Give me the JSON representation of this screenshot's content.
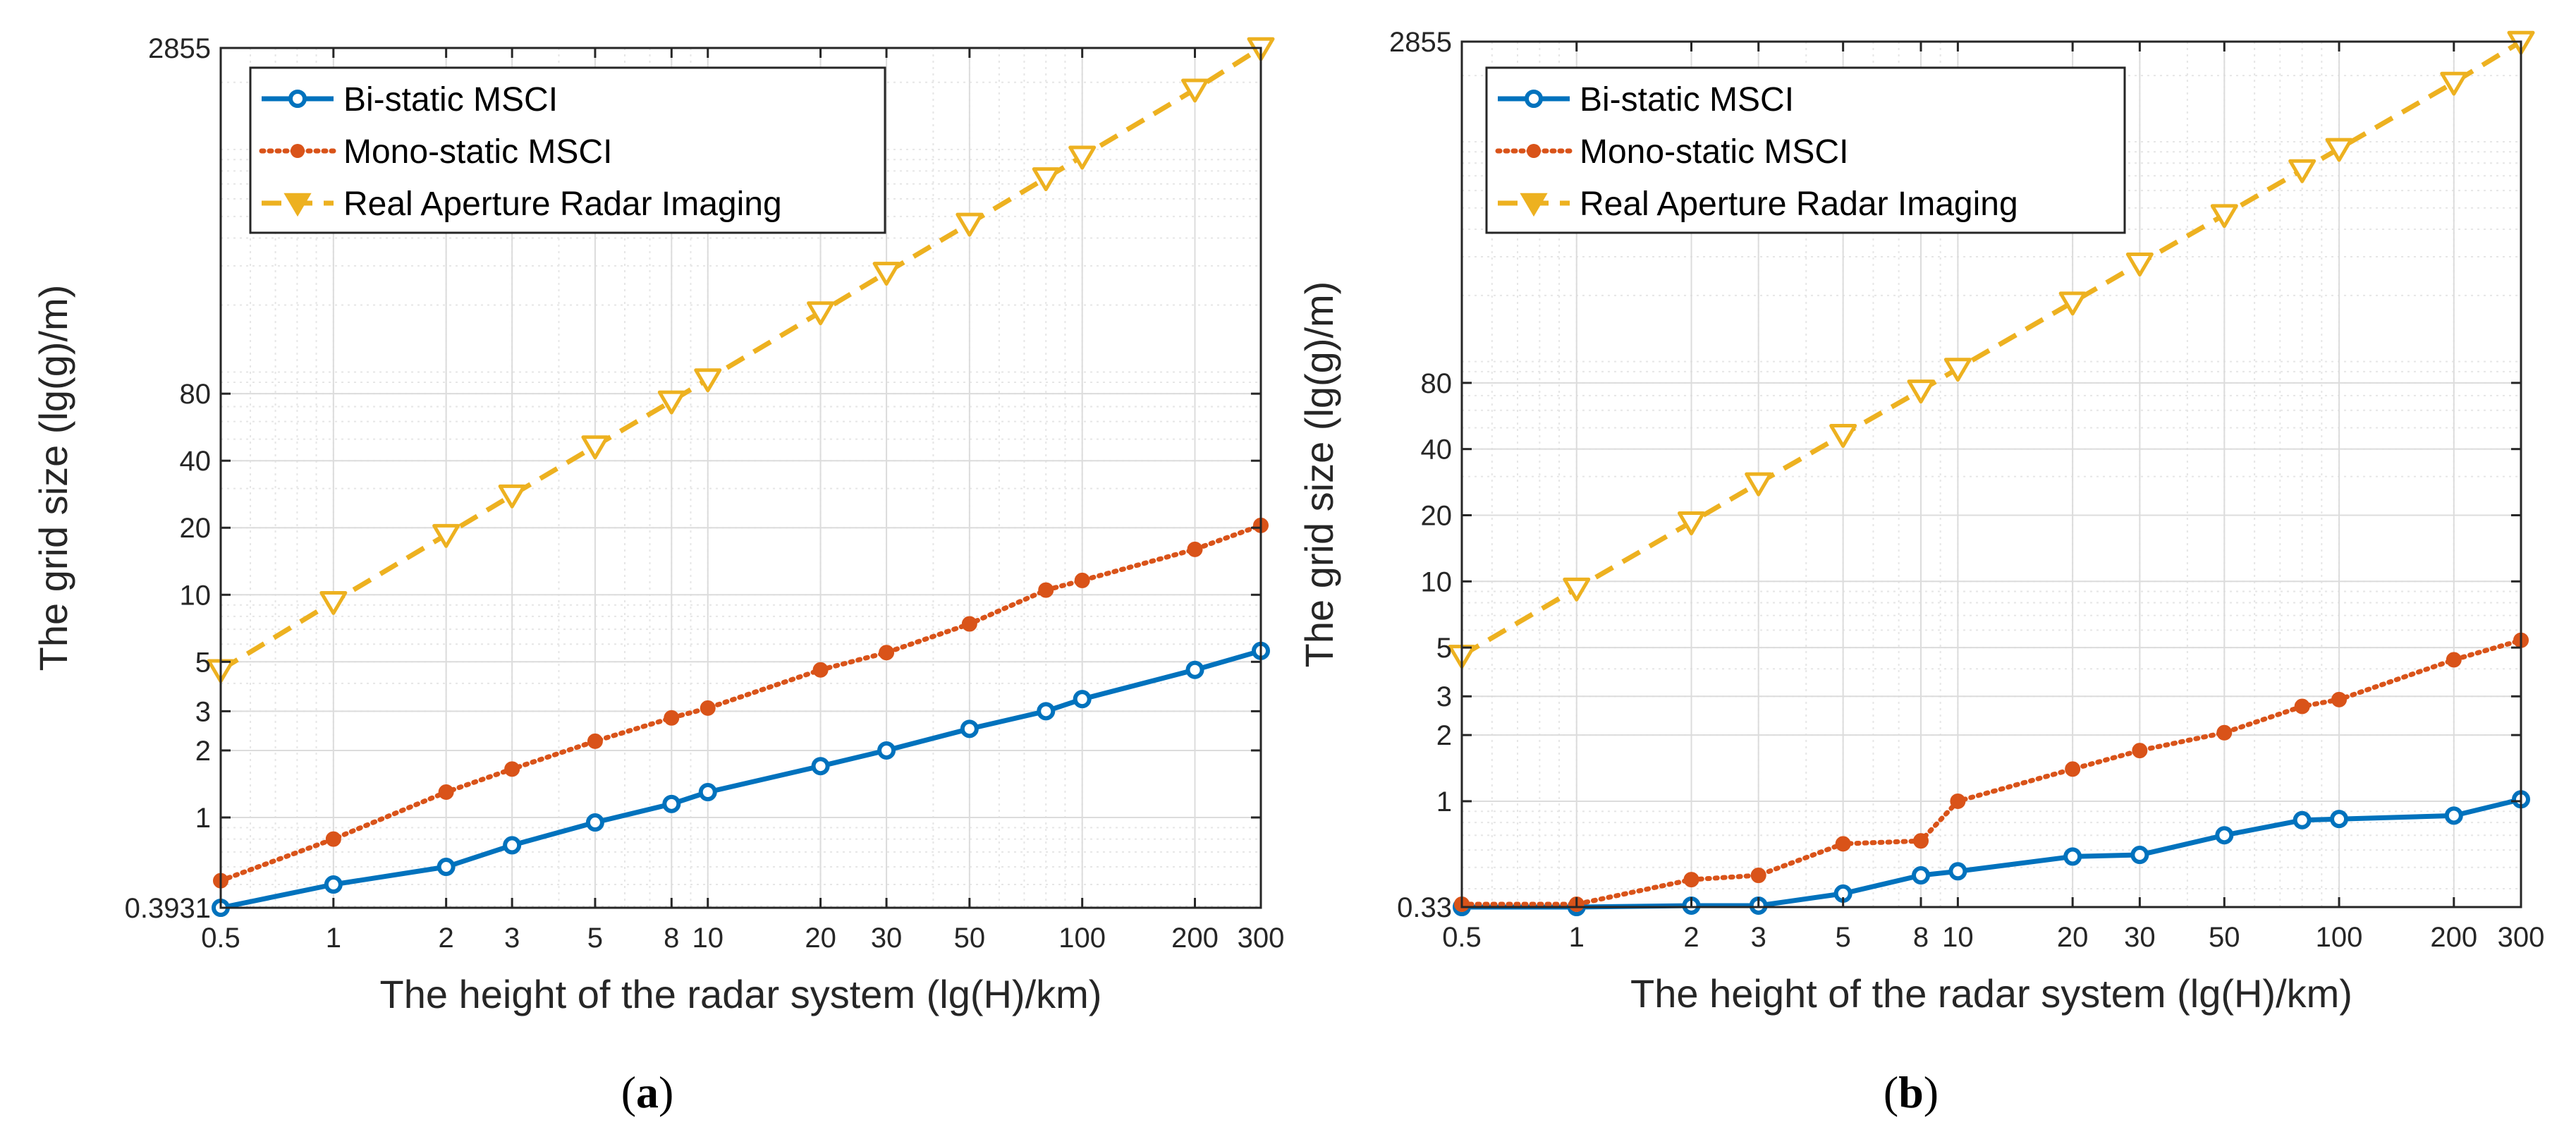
{
  "chart_data": [
    {
      "type": "line",
      "caption": "(a)",
      "xlabel": "The height of the radar system (lg(H)/km)",
      "ylabel": "The grid size (lg(g)/m)",
      "x_scale": "log",
      "y_scale": "log",
      "xlim": [
        0.5,
        300
      ],
      "ylim": [
        0.3931,
        2855
      ],
      "x_ticks": [
        "0.5",
        "1",
        "2",
        "3",
        "5",
        "8",
        "10",
        "20",
        "30",
        "50",
        "100",
        "200",
        "300"
      ],
      "y_ticks": [
        "0.3931",
        "1",
        "2",
        "3",
        "5",
        "10",
        "20",
        "40",
        "80",
        "2855"
      ],
      "grid": true,
      "legend_position": "top-left",
      "x": [
        0.5,
        1,
        2,
        3,
        5,
        8,
        10,
        20,
        30,
        50,
        80,
        100,
        200,
        300
      ],
      "series": [
        {
          "name": "Bi-static MSCI",
          "color": "#0072BD",
          "marker": "circle",
          "line_style": "solid",
          "values": [
            0.3931,
            0.5,
            0.6,
            0.75,
            0.95,
            1.15,
            1.3,
            1.7,
            2.0,
            2.5,
            3.0,
            3.4,
            4.6,
            5.6
          ]
        },
        {
          "name": "Mono-static MSCI",
          "color": "#D95319",
          "marker": "dot",
          "line_style": "dotted",
          "values": [
            0.52,
            0.8,
            1.3,
            1.65,
            2.2,
            2.8,
            3.1,
            4.6,
            5.5,
            7.4,
            10.5,
            11.6,
            16.0,
            20.5
          ]
        },
        {
          "name": "Real Aperture Radar Imaging",
          "color": "#EDB120",
          "marker": "triangle-down",
          "line_style": "dashed",
          "values": [
            4.6,
            9.3,
            18.6,
            28,
            46.5,
            74,
            93,
            186,
            280,
            465,
            744,
            930,
            1860,
            2855
          ]
        }
      ]
    },
    {
      "type": "line",
      "caption": "(b)",
      "xlabel": "The height of the radar system (lg(H)/km)",
      "ylabel": "The grid size (lg(g)/m)",
      "x_scale": "log",
      "y_scale": "log",
      "xlim": [
        0.5,
        300
      ],
      "ylim": [
        0.33,
        2855
      ],
      "x_ticks": [
        "0.5",
        "1",
        "2",
        "3",
        "5",
        "8",
        "10",
        "20",
        "30",
        "50",
        "100",
        "200",
        "300"
      ],
      "y_ticks": [
        "0.33",
        "1",
        "2",
        "3",
        "5",
        "10",
        "20",
        "40",
        "80",
        "2855"
      ],
      "grid": true,
      "legend_position": "top-left",
      "x": [
        0.5,
        1,
        2,
        3,
        5,
        8,
        10,
        20,
        30,
        50,
        80,
        100,
        200,
        300
      ],
      "series": [
        {
          "name": "Bi-static MSCI",
          "color": "#0072BD",
          "marker": "circle",
          "line_style": "solid",
          "values": [
            0.33,
            0.33,
            0.335,
            0.335,
            0.38,
            0.46,
            0.48,
            0.56,
            0.57,
            0.7,
            0.82,
            0.83,
            0.86,
            1.02
          ]
        },
        {
          "name": "Mono-static MSCI",
          "color": "#D95319",
          "marker": "dot",
          "line_style": "dotted",
          "values": [
            0.34,
            0.34,
            0.44,
            0.46,
            0.64,
            0.66,
            1.0,
            1.4,
            1.7,
            2.05,
            2.7,
            2.9,
            4.4,
            5.4
          ]
        },
        {
          "name": "Real Aperture Radar Imaging",
          "color": "#EDB120",
          "marker": "triangle-down",
          "line_style": "dashed",
          "values": [
            4.6,
            9.3,
            18.6,
            28,
            46.5,
            74,
            93,
            186,
            280,
            465,
            744,
            930,
            1860,
            2855
          ]
        }
      ]
    }
  ]
}
